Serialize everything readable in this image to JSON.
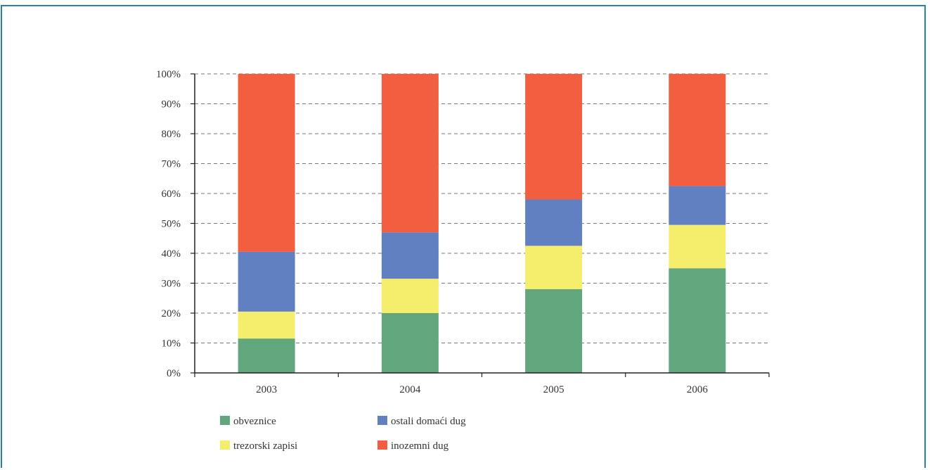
{
  "chart_data": {
    "type": "bar",
    "stacked": true,
    "percent": true,
    "categories": [
      "2003",
      "2004",
      "2005",
      "2006"
    ],
    "series": [
      {
        "name": "obveznice",
        "color": "#62a67e",
        "values": [
          11.5,
          20,
          28,
          35
        ]
      },
      {
        "name": "trezorski zapisi",
        "color": "#f4ee6c",
        "values": [
          9,
          11.5,
          14.5,
          14.5
        ]
      },
      {
        "name": "ostali domaći dug",
        "color": "#6180c1",
        "values": [
          20,
          15.5,
          15.5,
          13
        ]
      },
      {
        "name": "inozemni dug",
        "color": "#f25f40",
        "values": [
          59.5,
          53,
          42,
          37.5
        ]
      }
    ],
    "y_ticks": [
      "0%",
      "10%",
      "20%",
      "30%",
      "40%",
      "50%",
      "60%",
      "70%",
      "80%",
      "90%",
      "100%"
    ],
    "ylim": [
      0,
      100
    ],
    "grid": true,
    "legend_position": "bottom-left"
  }
}
